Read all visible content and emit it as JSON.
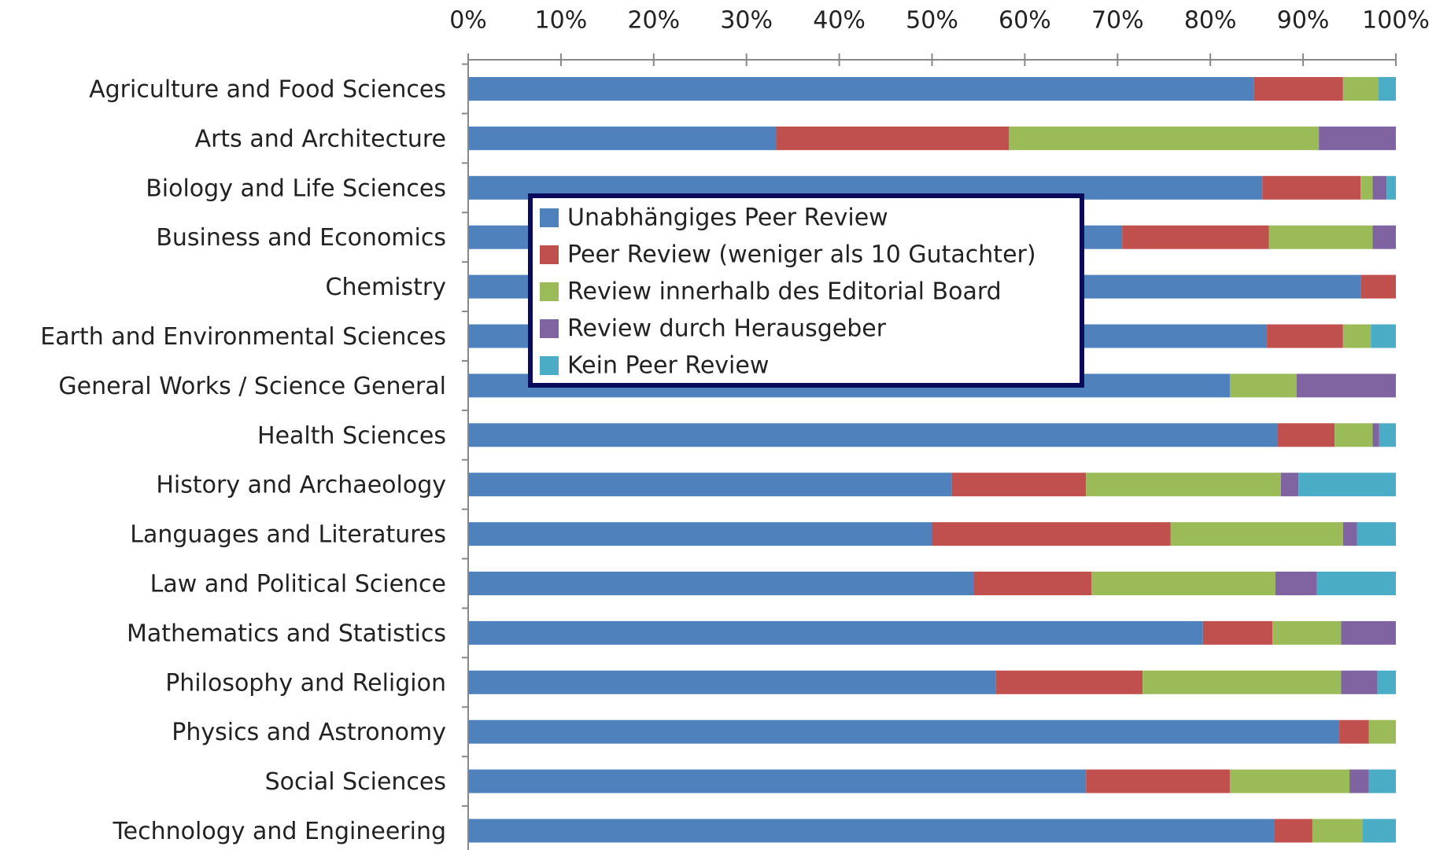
{
  "chart_data": {
    "type": "stacked-barh",
    "categories": [
      "Agriculture and Food Sciences",
      "Arts and Architecture",
      "Biology and Life Sciences",
      "Business and Economics",
      "Chemistry",
      "Earth and Environmental Sciences",
      "General Works / Science General",
      "Health Sciences",
      "History and Archaeology",
      "Languages and Literatures",
      "Law and Political Science",
      "Mathematics and Statistics",
      "Philosophy and Religion",
      "Physics and Astronomy",
      "Social Sciences",
      "Technology and Engineering"
    ],
    "series": [
      {
        "name": "Unabhängiges Peer Review",
        "color": "#4f81bd",
        "values": [
          84.7,
          33.2,
          85.6,
          70.5,
          96.2,
          86.1,
          82.1,
          87.2,
          52.1,
          50.0,
          54.5,
          79.2,
          56.9,
          93.9,
          66.6,
          86.9
        ]
      },
      {
        "name": "Peer Review (weniger als 10 Gutachter)",
        "color": "#c0504d",
        "values": [
          9.6,
          25.1,
          10.6,
          15.8,
          3.8,
          8.2,
          0,
          6.2,
          14.5,
          25.7,
          12.7,
          7.5,
          15.8,
          3.2,
          15.5,
          4.1
        ]
      },
      {
        "name": "Review innerhalb des Editorial Board",
        "color": "#9bbb59",
        "values": [
          3.8,
          33.4,
          1.3,
          11.2,
          0,
          3.0,
          7.2,
          4.1,
          21.0,
          18.6,
          19.8,
          7.4,
          21.4,
          2.9,
          12.9,
          5.4
        ]
      },
      {
        "name": "Review durch Herausgeber",
        "color": "#8064a2",
        "values": [
          0,
          8.3,
          1.5,
          2.5,
          0,
          0,
          10.7,
          0.7,
          1.9,
          1.5,
          4.5,
          5.9,
          3.9,
          0,
          2.1,
          0
        ]
      },
      {
        "name": "Kein Peer Review",
        "color": "#4bacc6",
        "values": [
          1.9,
          0,
          1.0,
          0,
          0,
          2.7,
          0,
          1.8,
          10.5,
          4.2,
          8.5,
          0,
          2.0,
          0,
          2.9,
          3.6
        ]
      }
    ],
    "xlim": [
      0,
      100
    ],
    "xticks": [
      {
        "value": 0,
        "label": "0%"
      },
      {
        "value": 10,
        "label": "10%"
      },
      {
        "value": 20,
        "label": "20%"
      },
      {
        "value": 30,
        "label": "30%"
      },
      {
        "value": 40,
        "label": "40%"
      },
      {
        "value": 50,
        "label": "50%"
      },
      {
        "value": 60,
        "label": "60%"
      },
      {
        "value": 70,
        "label": "70%"
      },
      {
        "value": 80,
        "label": "80%"
      },
      {
        "value": 90,
        "label": "90%"
      },
      {
        "value": 100,
        "label": "100%"
      }
    ]
  }
}
